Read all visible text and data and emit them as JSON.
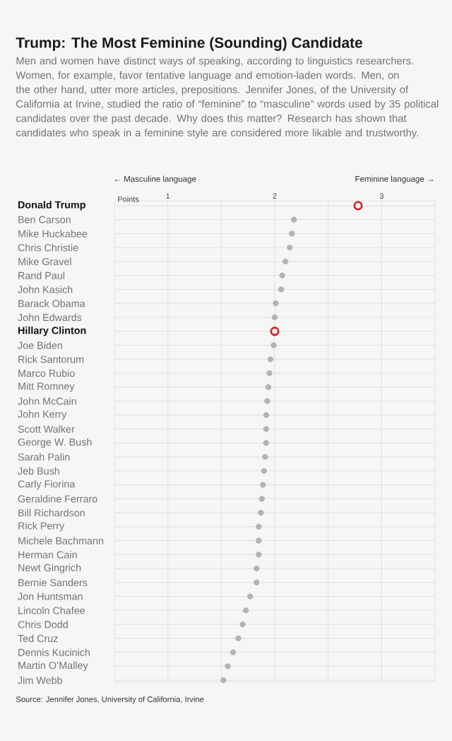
{
  "chart_data": {
    "type": "scatter",
    "orientation": "horizontal",
    "title": "Trump: The Most Feminine (Sounding) Candidate",
    "subtitle": "Men and women have distinct ways of speaking, according to linguistics researchers. Women, for example, favor tentative language and emotion-laden words. Men, on the other hand, utter more articles, prepositions. Jennifer Jones, of the University of California at Irvine, studied the ratio of “feminine” to “masculine” words used by 35 political candidates over the past decade. Why does this matter? Research has shown that candidates who speak in a feminine style are considered more likable and trustworthy.",
    "xlabel": "Points",
    "annotations": [
      "← Masculine language",
      "Feminine language →",
      "Source: Jennifer Jones, University of California, Irvine"
    ],
    "categories": [
      "Donald Trump",
      "Ben Carson",
      "Mike Huckabee",
      "Chris Christie",
      "Mike Gravel",
      "Rand Paul",
      "John Kasich",
      "Barack Obama",
      "John Edwards",
      "Hillary Clinton",
      "Joe Biden",
      "Rick Santorum",
      "Marco Rubio",
      "Mitt Romney",
      "John McCain",
      "John Kerry",
      "Scott Walker",
      "George W. Bush",
      "Sarah Palin",
      "Jeb Bush",
      "Carly Fiorina",
      "Geraldine Ferraro",
      "Bill Richardson",
      "Rick Perry",
      "Michele Bachmann",
      "Herman Cain",
      "Newt Gingrich",
      "Bernie Sanders",
      "Jon Huntsman",
      "Lincoln Chafee",
      "Chris Dodd",
      "Ted Cruz",
      "Dennis Kucinich",
      "Martin O’Malley",
      "Jim Webb"
    ],
    "values": [
      2.78,
      2.18,
      2.16,
      2.14,
      2.1,
      2.07,
      2.06,
      2.01,
      2.0,
      2.0,
      1.99,
      1.96,
      1.95,
      1.94,
      1.93,
      1.92,
      1.92,
      1.92,
      1.91,
      1.9,
      1.89,
      1.88,
      1.87,
      1.85,
      1.85,
      1.85,
      1.83,
      1.83,
      1.77,
      1.73,
      1.7,
      1.66,
      1.61,
      1.56,
      1.52
    ],
    "color": "#b3b3b3",
    "colors": [
      "#d0282e",
      "#b3b3b3",
      "#b3b3b3",
      "#b3b3b3",
      "#b3b3b3",
      "#b3b3b3",
      "#b3b3b3",
      "#b3b3b3",
      "#b3b3b3",
      "#d0282e",
      "#b3b3b3",
      "#b3b3b3",
      "#b3b3b3",
      "#b3b3b3",
      "#b3b3b3",
      "#b3b3b3",
      "#b3b3b3",
      "#b3b3b3",
      "#b3b3b3",
      "#b3b3b3",
      "#b3b3b3",
      "#b3b3b3",
      "#b3b3b3",
      "#b3b3b3",
      "#b3b3b3",
      "#b3b3b3",
      "#b3b3b3",
      "#b3b3b3",
      "#b3b3b3",
      "#b3b3b3",
      "#b3b3b3",
      "#b3b3b3",
      "#b3b3b3",
      "#b3b3b3",
      "#b3b3b3"
    ],
    "xlim": [
      0.5,
      3.5
    ],
    "xticks": [
      1,
      {
        "value": 1.5,
        "label": null
      },
      2,
      {
        "value": 2.5,
        "label": null
      },
      3
    ],
    "grid": true,
    "marker": "circle"
  }
}
